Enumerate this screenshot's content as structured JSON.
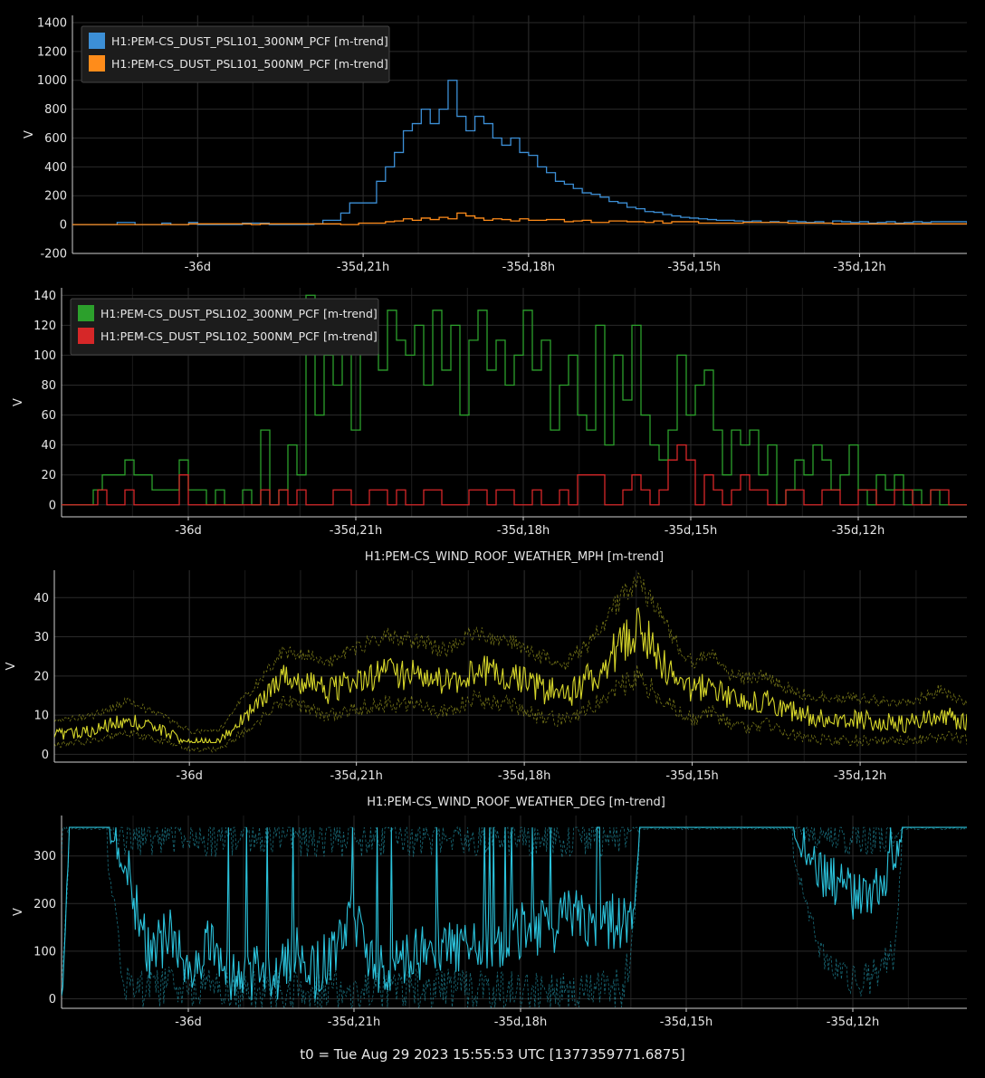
{
  "footer": "t0 = Tue Aug 29 2023 15:55:53 UTC [1377359771.6875]",
  "colors": {
    "background": "#000000",
    "grid": "#2a2a2a",
    "axis": "#cfcfcf",
    "blue": "#3c8fd6",
    "orange": "#ff8c1a",
    "green": "#2ca02c",
    "red": "#d62728",
    "yellow": "#d6d62a",
    "cyan": "#2bc3dc"
  },
  "chart_data": [
    {
      "type": "line",
      "title": "",
      "ylabel": "V",
      "ylim": [
        -200,
        1450
      ],
      "yticks": [
        -200,
        0,
        200,
        400,
        600,
        800,
        1000,
        1200,
        1400
      ],
      "xlim": [
        0,
        1
      ],
      "xticks": [
        {
          "x": 0.14,
          "label": "-36d"
        },
        {
          "x": 0.325,
          "label": "-35d,21h"
        },
        {
          "x": 0.51,
          "label": "-35d,18h"
        },
        {
          "x": 0.695,
          "label": "-35d,15h"
        },
        {
          "x": 0.88,
          "label": "-35d,12h"
        }
      ],
      "grid": true,
      "legend_position": "top-left",
      "series": [
        {
          "name": "H1:PEM-CS_DUST_PSL101_300NM_PCF [m-trend]",
          "color": "blue",
          "step": true,
          "x": [
            0,
            0.05,
            0.07,
            0.1,
            0.11,
            0.13,
            0.14,
            0.17,
            0.19,
            0.22,
            0.27,
            0.28,
            0.3,
            0.31,
            0.34,
            0.35,
            0.36,
            0.37,
            0.38,
            0.39,
            0.4,
            0.41,
            0.42,
            0.43,
            0.44,
            0.45,
            0.46,
            0.47,
            0.48,
            0.49,
            0.5,
            0.51,
            0.52,
            0.53,
            0.54,
            0.55,
            0.56,
            0.57,
            0.58,
            0.59,
            0.6,
            0.61,
            0.62,
            0.63,
            0.64,
            0.65,
            0.66,
            0.67,
            0.68,
            0.69,
            0.7,
            0.71,
            0.72,
            0.73,
            0.74,
            0.75,
            0.76,
            0.77,
            0.78,
            0.79,
            0.8,
            0.81,
            0.82,
            0.83,
            0.84,
            0.85,
            0.86,
            0.87,
            0.88,
            0.89,
            0.9,
            0.91,
            0.92,
            0.93,
            0.94,
            0.95,
            0.96,
            0.98,
            1.0
          ],
          "y": [
            0,
            15,
            0,
            10,
            0,
            15,
            0,
            0,
            10,
            0,
            5,
            30,
            80,
            150,
            300,
            400,
            500,
            650,
            700,
            800,
            700,
            800,
            1000,
            750,
            650,
            750,
            700,
            600,
            550,
            600,
            500,
            480,
            400,
            360,
            300,
            280,
            250,
            220,
            210,
            190,
            160,
            150,
            120,
            110,
            90,
            85,
            70,
            60,
            50,
            45,
            40,
            35,
            30,
            30,
            25,
            20,
            25,
            15,
            20,
            15,
            25,
            20,
            15,
            20,
            10,
            25,
            20,
            15,
            20,
            10,
            15,
            20,
            10,
            15,
            20,
            15,
            20,
            20,
            10
          ]
        },
        {
          "name": "H1:PEM-CS_DUST_PSL101_500NM_PCF [m-trend]",
          "color": "orange",
          "step": true,
          "x": [
            0,
            0.12,
            0.13,
            0.2,
            0.21,
            0.3,
            0.32,
            0.35,
            0.36,
            0.37,
            0.38,
            0.39,
            0.4,
            0.41,
            0.42,
            0.43,
            0.44,
            0.45,
            0.46,
            0.47,
            0.48,
            0.49,
            0.5,
            0.51,
            0.53,
            0.55,
            0.56,
            0.57,
            0.58,
            0.6,
            0.62,
            0.64,
            0.65,
            0.66,
            0.67,
            0.7,
            0.75,
            0.8,
            0.85,
            0.9,
            1.0
          ],
          "y": [
            0,
            0,
            5,
            0,
            5,
            0,
            10,
            20,
            25,
            40,
            30,
            45,
            35,
            50,
            40,
            80,
            60,
            45,
            30,
            40,
            35,
            25,
            40,
            30,
            35,
            20,
            25,
            30,
            15,
            25,
            20,
            15,
            25,
            10,
            20,
            10,
            15,
            10,
            5,
            5,
            0
          ]
        }
      ]
    },
    {
      "type": "line",
      "title": "",
      "ylabel": "V",
      "ylim": [
        -8,
        145
      ],
      "yticks": [
        0,
        20,
        40,
        60,
        80,
        100,
        120,
        140
      ],
      "xlim": [
        0,
        1
      ],
      "xticks": [
        {
          "x": 0.14,
          "label": "-36d"
        },
        {
          "x": 0.325,
          "label": "-35d,21h"
        },
        {
          "x": 0.51,
          "label": "-35d,18h"
        },
        {
          "x": 0.695,
          "label": "-35d,15h"
        },
        {
          "x": 0.88,
          "label": "-35d,12h"
        }
      ],
      "grid": true,
      "legend_position": "top-left",
      "series": [
        {
          "name": "H1:PEM-CS_DUST_PSL102_300NM_PCF [m-trend]",
          "color": "green",
          "step": true,
          "x": [
            0,
            0.035,
            0.045,
            0.07,
            0.08,
            0.1,
            0.13,
            0.14,
            0.16,
            0.17,
            0.18,
            0.2,
            0.21,
            0.22,
            0.23,
            0.24,
            0.25,
            0.26,
            0.27,
            0.28,
            0.29,
            0.3,
            0.31,
            0.32,
            0.33,
            0.34,
            0.35,
            0.36,
            0.37,
            0.38,
            0.39,
            0.4,
            0.41,
            0.42,
            0.43,
            0.44,
            0.45,
            0.46,
            0.47,
            0.48,
            0.49,
            0.5,
            0.51,
            0.52,
            0.53,
            0.54,
            0.55,
            0.56,
            0.57,
            0.58,
            0.59,
            0.6,
            0.61,
            0.62,
            0.63,
            0.64,
            0.65,
            0.66,
            0.67,
            0.68,
            0.69,
            0.7,
            0.71,
            0.72,
            0.73,
            0.74,
            0.75,
            0.76,
            0.77,
            0.78,
            0.79,
            0.8,
            0.81,
            0.82,
            0.83,
            0.84,
            0.85,
            0.86,
            0.87,
            0.88,
            0.89,
            0.9,
            0.91,
            0.92,
            0.93,
            0.94,
            0.95,
            0.96,
            0.97,
            0.98,
            0.99,
            1.0
          ],
          "y": [
            0,
            10,
            20,
            30,
            20,
            10,
            30,
            10,
            0,
            10,
            0,
            10,
            0,
            50,
            0,
            10,
            40,
            20,
            140,
            60,
            100,
            80,
            110,
            50,
            110,
            110,
            90,
            130,
            110,
            100,
            120,
            80,
            130,
            90,
            120,
            60,
            110,
            130,
            90,
            110,
            80,
            100,
            130,
            90,
            110,
            50,
            80,
            100,
            60,
            50,
            120,
            40,
            100,
            70,
            120,
            60,
            40,
            30,
            50,
            100,
            60,
            80,
            90,
            50,
            20,
            50,
            40,
            50,
            20,
            40,
            0,
            10,
            30,
            20,
            40,
            30,
            10,
            20,
            40,
            10,
            0,
            20,
            10,
            20,
            0,
            10,
            0,
            10,
            0,
            0,
            0,
            0
          ]
        },
        {
          "name": "H1:PEM-CS_DUST_PSL102_500NM_PCF [m-trend]",
          "color": "red",
          "step": true,
          "x": [
            0,
            0.04,
            0.05,
            0.07,
            0.08,
            0.13,
            0.14,
            0.22,
            0.23,
            0.24,
            0.25,
            0.26,
            0.27,
            0.3,
            0.32,
            0.34,
            0.36,
            0.37,
            0.38,
            0.4,
            0.42,
            0.45,
            0.47,
            0.48,
            0.5,
            0.52,
            0.53,
            0.55,
            0.56,
            0.57,
            0.6,
            0.62,
            0.63,
            0.64,
            0.65,
            0.66,
            0.67,
            0.68,
            0.69,
            0.7,
            0.71,
            0.72,
            0.73,
            0.74,
            0.75,
            0.76,
            0.78,
            0.8,
            0.82,
            0.84,
            0.86,
            0.88,
            0.9,
            0.92,
            0.94,
            0.96,
            0.98,
            1.0
          ],
          "y": [
            0,
            10,
            0,
            10,
            0,
            20,
            0,
            10,
            0,
            10,
            0,
            10,
            0,
            10,
            0,
            10,
            0,
            10,
            0,
            10,
            0,
            10,
            0,
            10,
            0,
            10,
            0,
            10,
            0,
            20,
            0,
            10,
            20,
            10,
            0,
            10,
            30,
            40,
            30,
            0,
            20,
            10,
            0,
            10,
            20,
            10,
            0,
            10,
            0,
            10,
            0,
            10,
            0,
            10,
            0,
            10,
            0,
            0
          ]
        }
      ]
    },
    {
      "type": "line",
      "title": "H1:PEM-CS_WIND_ROOF_WEATHER_MPH [m-trend]",
      "ylabel": "V",
      "ylim": [
        -2,
        47
      ],
      "yticks": [
        0,
        10,
        20,
        30,
        40
      ],
      "xlim": [
        0,
        1
      ],
      "xticks": [
        {
          "x": 0.148,
          "label": "-36d"
        },
        {
          "x": 0.331,
          "label": "-35d,21h"
        },
        {
          "x": 0.515,
          "label": "-35d,18h"
        },
        {
          "x": 0.699,
          "label": "-35d,15h"
        },
        {
          "x": 0.883,
          "label": "-35d,12h"
        }
      ],
      "grid": true,
      "series": [
        {
          "name": "",
          "color": "yellow",
          "envelope": true,
          "x": [
            0,
            0.04,
            0.08,
            0.12,
            0.15,
            0.18,
            0.2,
            0.22,
            0.25,
            0.28,
            0.3,
            0.33,
            0.36,
            0.4,
            0.43,
            0.46,
            0.5,
            0.53,
            0.56,
            0.58,
            0.6,
            0.62,
            0.64,
            0.66,
            0.68,
            0.7,
            0.72,
            0.74,
            0.76,
            0.78,
            0.8,
            0.82,
            0.85,
            0.88,
            0.91,
            0.94,
            0.97,
            1.0
          ],
          "y": [
            5,
            6,
            9,
            6,
            3,
            3,
            8,
            12,
            20,
            18,
            16,
            19,
            21,
            20,
            18,
            22,
            20,
            17,
            15,
            18,
            22,
            28,
            32,
            26,
            20,
            16,
            18,
            14,
            13,
            14,
            12,
            10,
            9,
            9,
            8,
            8,
            10,
            8
          ],
          "min": [
            2,
            3,
            5,
            3,
            1,
            1,
            4,
            7,
            13,
            11,
            9,
            11,
            12,
            12,
            10,
            13,
            12,
            9,
            8,
            10,
            13,
            16,
            19,
            14,
            11,
            8,
            10,
            7,
            6,
            7,
            5,
            4,
            3,
            3,
            3,
            3,
            4,
            3
          ],
          "max": [
            9,
            10,
            14,
            10,
            6,
            6,
            13,
            18,
            27,
            26,
            24,
            28,
            31,
            30,
            27,
            32,
            30,
            26,
            24,
            28,
            33,
            41,
            45,
            38,
            30,
            24,
            27,
            21,
            20,
            21,
            18,
            16,
            15,
            15,
            14,
            14,
            17,
            14
          ]
        }
      ]
    },
    {
      "type": "line",
      "title": "H1:PEM-CS_WIND_ROOF_WEATHER_DEG [m-trend]",
      "ylabel": "V",
      "ylim": [
        -20,
        385
      ],
      "yticks": [
        0,
        100,
        200,
        300
      ],
      "xlim": [
        0,
        1
      ],
      "xticks": [
        {
          "x": 0.14,
          "label": "-36d"
        },
        {
          "x": 0.323,
          "label": "-35d,21h"
        },
        {
          "x": 0.507,
          "label": "-35d,18h"
        },
        {
          "x": 0.69,
          "label": "-35d,15h"
        },
        {
          "x": 0.874,
          "label": "-35d,12h"
        }
      ],
      "grid": true,
      "series": [
        {
          "name": "",
          "color": "cyan",
          "envelope": true,
          "x": [
            0,
            0.01,
            0.02,
            0.05,
            0.07,
            0.09,
            0.1,
            0.12,
            0.14,
            0.16,
            0.18,
            0.2,
            0.22,
            0.24,
            0.26,
            0.28,
            0.3,
            0.32,
            0.34,
            0.36,
            0.38,
            0.4,
            0.42,
            0.44,
            0.46,
            0.48,
            0.5,
            0.52,
            0.54,
            0.56,
            0.58,
            0.6,
            0.62,
            0.63,
            0.64,
            0.7,
            0.75,
            0.8,
            0.84,
            0.86,
            0.88,
            0.9,
            0.92,
            0.93,
            0.97,
            1.0
          ],
          "y": [
            30,
            360,
            360,
            360,
            300,
            130,
            80,
            160,
            60,
            120,
            40,
            40,
            60,
            50,
            90,
            60,
            100,
            200,
            80,
            70,
            80,
            90,
            120,
            110,
            130,
            120,
            150,
            140,
            150,
            170,
            160,
            170,
            150,
            160,
            360,
            360,
            360,
            360,
            260,
            240,
            200,
            230,
            280,
            360,
            360,
            360
          ],
          "min": [
            0,
            360,
            360,
            300,
            10,
            0,
            0,
            10,
            0,
            10,
            0,
            0,
            0,
            0,
            10,
            0,
            0,
            0,
            0,
            0,
            0,
            0,
            0,
            0,
            0,
            0,
            0,
            0,
            0,
            0,
            0,
            0,
            0,
            100,
            360,
            360,
            360,
            360,
            70,
            40,
            20,
            40,
            80,
            360,
            360,
            360
          ],
          "max": [
            360,
            360,
            360,
            360,
            360,
            360,
            360,
            360,
            360,
            360,
            360,
            360,
            360,
            360,
            360,
            360,
            360,
            360,
            360,
            360,
            360,
            360,
            360,
            360,
            360,
            360,
            360,
            360,
            360,
            360,
            360,
            360,
            360,
            360,
            360,
            360,
            360,
            360,
            360,
            360,
            360,
            360,
            360,
            360,
            360,
            360
          ]
        }
      ]
    }
  ]
}
